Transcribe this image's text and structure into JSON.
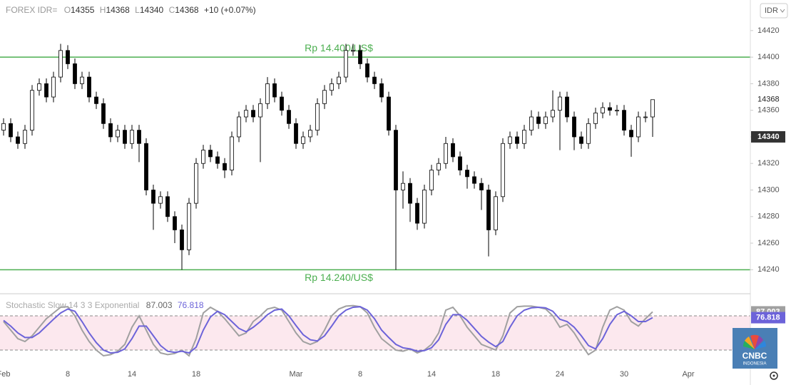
{
  "header": {
    "symbol": "FOREX IDR=",
    "labels": [
      "O",
      "H",
      "L",
      "C"
    ],
    "change": "+10 (+0.07%)",
    "currency": "IDR",
    "logo": "CNBC",
    "logo_sub": "INDONESIA"
  },
  "chart_data": [
    {
      "type": "candlestick",
      "categories": [
        "Feb",
        null,
        null,
        null,
        null,
        null,
        null,
        null,
        null,
        "8",
        null,
        null,
        null,
        null,
        null,
        null,
        null,
        null,
        "14",
        null,
        null,
        null,
        null,
        null,
        null,
        null,
        null,
        "18",
        null,
        null,
        null,
        null,
        null,
        null,
        null,
        null,
        null,
        null,
        null,
        null,
        null,
        "Mar",
        null,
        null,
        null,
        null,
        null,
        null,
        null,
        null,
        "8",
        null,
        null,
        null,
        null,
        null,
        null,
        null,
        null,
        null,
        "14",
        null,
        null,
        null,
        null,
        null,
        null,
        null,
        null,
        "18",
        null,
        null,
        null,
        null,
        null,
        null,
        null,
        null,
        "24",
        null,
        null,
        null,
        null,
        null,
        null,
        null,
        null,
        "30",
        null,
        null,
        null,
        null,
        null,
        null,
        null,
        null,
        "Apr",
        null,
        null,
        null
      ],
      "open": [
        14345,
        14350,
        14340,
        14335,
        14345,
        14375,
        14380,
        14370,
        14385,
        14405,
        14395,
        14380,
        14385,
        14370,
        14365,
        14350,
        14340,
        14345,
        14335,
        14345,
        14335,
        14300,
        14290,
        14295,
        14280,
        14270,
        14255,
        14290,
        14320,
        14330,
        14325,
        14320,
        14315,
        14340,
        14355,
        14360,
        14355,
        14365,
        14380,
        14370,
        14360,
        14350,
        14335,
        14340,
        14345,
        14365,
        14375,
        14380,
        14385,
        14405,
        14405,
        14395,
        14385,
        14380,
        14370,
        14345,
        14300,
        14305,
        14290,
        14275,
        14300,
        14315,
        14320,
        14335,
        14325,
        14315,
        14310,
        14305,
        14300,
        14270,
        14295,
        14335,
        14340,
        14335,
        14345,
        14355,
        14350,
        14355,
        14360,
        14370,
        14355,
        14340,
        14335,
        14350,
        14358,
        14362,
        14360,
        14360,
        14345,
        14340,
        14355,
        14355,
        null,
        null,
        null,
        null,
        null,
        null,
        null,
        null
      ],
      "high": [
        14354,
        14354,
        14344,
        14349,
        14379,
        14384,
        14384,
        14389,
        14410,
        14409,
        14399,
        14389,
        14389,
        14374,
        14369,
        14354,
        14349,
        14349,
        14349,
        14349,
        14339,
        14304,
        14299,
        14299,
        14284,
        14274,
        14294,
        14324,
        14334,
        14334,
        14329,
        14324,
        14344,
        14359,
        14364,
        14364,
        14369,
        14385,
        14384,
        14374,
        14364,
        14354,
        14344,
        14349,
        14369,
        14379,
        14384,
        14389,
        14410,
        14410,
        14409,
        14399,
        14389,
        14384,
        14374,
        14349,
        14314,
        14309,
        14294,
        14304,
        14319,
        14324,
        14340,
        14339,
        14329,
        14319,
        14314,
        14309,
        14304,
        14299,
        14339,
        14344,
        14344,
        14349,
        14360,
        14359,
        14359,
        14375,
        14374,
        14374,
        14359,
        14344,
        14354,
        14362,
        14366,
        14366,
        14364,
        14364,
        14349,
        14359,
        14359,
        14368,
        null,
        null,
        null,
        null,
        null,
        null,
        null,
        null
      ],
      "low": [
        14341,
        14336,
        14331,
        14331,
        14341,
        14371,
        14366,
        14366,
        14381,
        14391,
        14376,
        14376,
        14366,
        14361,
        14346,
        14336,
        14336,
        14331,
        14331,
        14321,
        14296,
        14270,
        14286,
        14276,
        14260,
        14240,
        14251,
        14286,
        14316,
        14321,
        14316,
        14309,
        14311,
        14336,
        14351,
        14351,
        14321,
        14361,
        14366,
        14356,
        14346,
        14331,
        14331,
        14336,
        14341,
        14361,
        14371,
        14376,
        14381,
        14401,
        14391,
        14381,
        14376,
        14366,
        14341,
        14240,
        14286,
        14276,
        14270,
        14271,
        14296,
        14311,
        14316,
        14321,
        14311,
        14301,
        14301,
        14285,
        14250,
        14266,
        14291,
        14331,
        14331,
        14331,
        14341,
        14346,
        14346,
        14351,
        14330,
        14351,
        14330,
        14331,
        14331,
        14346,
        14354,
        14356,
        14356,
        14341,
        14325,
        14336,
        14351,
        14340,
        null,
        null,
        null,
        null,
        null,
        null,
        null,
        null
      ],
      "close": [
        14350,
        14340,
        14335,
        14345,
        14375,
        14380,
        14370,
        14385,
        14405,
        14395,
        14380,
        14385,
        14370,
        14365,
        14350,
        14340,
        14345,
        14335,
        14345,
        14335,
        14300,
        14290,
        14295,
        14280,
        14270,
        14255,
        14290,
        14320,
        14330,
        14325,
        14320,
        14315,
        14340,
        14355,
        14360,
        14355,
        14365,
        14380,
        14370,
        14360,
        14350,
        14335,
        14340,
        14345,
        14365,
        14375,
        14380,
        14385,
        14405,
        14405,
        14395,
        14385,
        14380,
        14370,
        14345,
        14300,
        14305,
        14290,
        14275,
        14300,
        14315,
        14320,
        14335,
        14325,
        14315,
        14310,
        14305,
        14300,
        14270,
        14295,
        14335,
        14340,
        14335,
        14345,
        14355,
        14350,
        14355,
        14360,
        14370,
        14355,
        14340,
        14335,
        14350,
        14358,
        14362,
        14360,
        14360,
        14345,
        14340,
        14355,
        14355,
        14368,
        null,
        null,
        null,
        null,
        null,
        null,
        null,
        null
      ],
      "up_color": "#ffffff",
      "down_color": "#000000",
      "ylim": [
        14223,
        14443
      ],
      "yticks": [
        14240,
        14260,
        14280,
        14300,
        14320,
        14340,
        14360,
        14380,
        14400,
        14420
      ],
      "hlines": [
        {
          "value": 14400,
          "label": "Rp 14.400/US$"
        },
        {
          "value": 14240,
          "label": "Rp 14.240/US$"
        }
      ],
      "hline_color": "#4caf50",
      "last_price": 14368,
      "marker_price": 14340
    },
    {
      "type": "line",
      "title": "Stochastic Slow 14 3 3 Exponential",
      "series": [
        {
          "color": "#a0a0a0",
          "values": [
            70,
            55,
            40,
            35,
            45,
            60,
            75,
            85,
            95,
            96,
            80,
            55,
            35,
            20,
            10,
            12,
            18,
            30,
            60,
            80,
            55,
            30,
            15,
            12,
            14,
            20,
            10,
            40,
            85,
            95,
            88,
            75,
            60,
            45,
            50,
            70,
            80,
            92,
            95,
            90,
            70,
            50,
            35,
            30,
            35,
            55,
            80,
            92,
            97,
            98,
            96,
            85,
            60,
            40,
            30,
            20,
            18,
            22,
            15,
            20,
            30,
            50,
            90,
            95,
            80,
            60,
            45,
            30,
            25,
            20,
            45,
            85,
            96,
            97,
            97,
            95,
            92,
            80,
            60,
            65,
            50,
            30,
            12,
            20,
            60,
            90,
            96,
            90,
            70,
            62,
            75,
            87.003,
            null,
            null,
            null,
            null,
            null,
            null,
            null,
            null
          ]
        },
        {
          "color": "#6c63d9",
          "values": [
            72,
            62,
            50,
            42,
            42,
            50,
            62,
            74,
            85,
            92,
            88,
            70,
            50,
            33,
            20,
            15,
            16,
            22,
            40,
            62,
            62,
            45,
            28,
            18,
            16,
            18,
            15,
            25,
            55,
            78,
            88,
            82,
            70,
            58,
            52,
            60,
            70,
            82,
            90,
            92,
            80,
            63,
            47,
            38,
            36,
            45,
            62,
            80,
            90,
            95,
            96,
            90,
            75,
            55,
            42,
            30,
            24,
            22,
            18,
            19,
            24,
            38,
            65,
            82,
            82,
            72,
            58,
            44,
            34,
            26,
            35,
            60,
            80,
            90,
            94,
            95,
            94,
            88,
            74,
            70,
            60,
            45,
            28,
            22,
            40,
            65,
            82,
            88,
            80,
            70,
            70,
            76.818,
            null,
            null,
            null,
            null,
            null,
            null,
            null,
            null
          ]
        }
      ],
      "ylim": [
        -10,
        117.5
      ],
      "levels": [
        20,
        80
      ],
      "band_color": "#fce8ee"
    }
  ]
}
